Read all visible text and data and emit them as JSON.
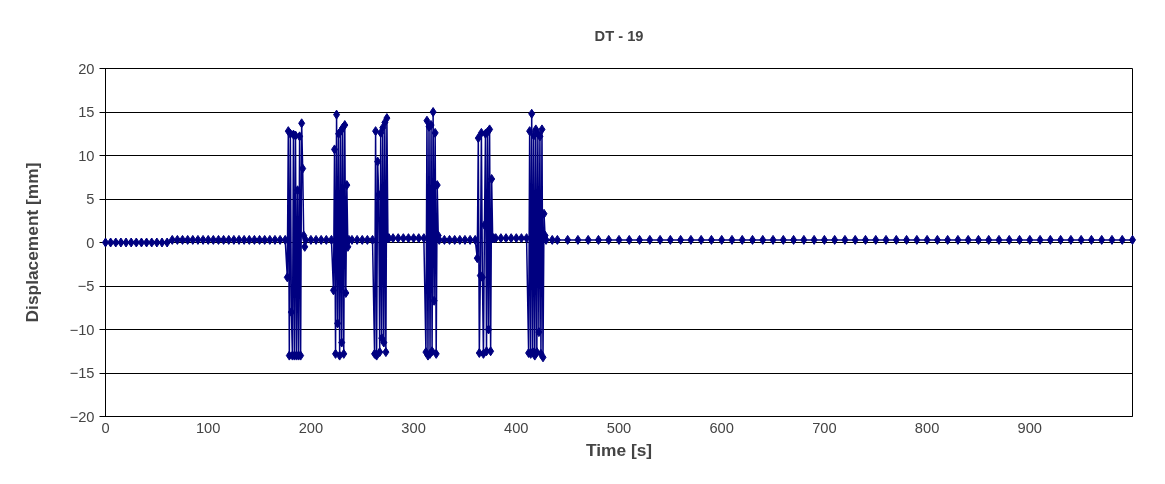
{
  "chart_data": {
    "type": "line",
    "title": "DT - 19",
    "xlabel": "Time [s]",
    "ylabel": "Displacement [mm]",
    "xlim": [
      0,
      1000
    ],
    "xticks": [
      0,
      100,
      200,
      300,
      400,
      500,
      600,
      700,
      800,
      900
    ],
    "ylim": [
      -20,
      20
    ],
    "yticks": [
      -20,
      -15,
      -10,
      -5,
      0,
      5,
      10,
      15,
      20
    ],
    "grid": "y",
    "marker": "diamond",
    "series": [
      {
        "color": "#000080",
        "x": [
          0,
          5,
          10,
          15,
          20,
          25,
          30,
          35,
          40,
          45,
          50,
          55,
          60,
          65,
          70,
          75,
          80,
          85,
          90,
          95,
          100,
          105,
          110,
          115,
          120,
          125,
          130,
          135,
          140,
          145,
          150,
          155,
          160,
          165,
          170,
          175,
          177,
          178,
          179,
          180,
          181,
          182,
          183,
          184,
          185,
          186,
          187,
          188,
          189,
          190,
          191,
          192,
          193,
          194,
          195,
          200,
          205,
          210,
          215,
          220,
          222,
          223,
          224,
          225,
          226,
          227,
          228,
          229,
          230,
          231,
          232,
          233,
          234,
          235,
          236,
          237,
          240,
          245,
          250,
          255,
          260,
          262,
          263,
          264,
          265,
          266,
          267,
          268,
          269,
          270,
          271,
          272,
          273,
          274,
          275,
          276,
          280,
          285,
          290,
          295,
          300,
          305,
          310,
          312,
          313,
          314,
          315,
          316,
          317,
          318,
          319,
          320,
          321,
          322,
          323,
          324,
          325,
          330,
          335,
          340,
          345,
          350,
          355,
          360,
          362,
          363,
          364,
          365,
          366,
          367,
          368,
          369,
          370,
          371,
          372,
          373,
          374,
          375,
          376,
          377,
          378,
          380,
          385,
          390,
          395,
          400,
          405,
          410,
          412,
          413,
          414,
          415,
          416,
          417,
          418,
          419,
          420,
          421,
          422,
          423,
          424,
          425,
          426,
          427,
          428,
          429,
          435,
          440,
          450,
          460,
          470,
          480,
          490,
          500,
          510,
          520,
          530,
          540,
          550,
          560,
          570,
          580,
          590,
          600,
          610,
          620,
          630,
          640,
          650,
          660,
          670,
          680,
          690,
          700,
          710,
          720,
          730,
          740,
          750,
          760,
          770,
          780,
          790,
          800,
          810,
          820,
          830,
          840,
          850,
          860,
          870,
          880,
          890,
          900,
          910,
          920,
          930,
          940,
          950,
          960,
          970,
          980,
          990,
          1000
        ],
        "values": [
          0,
          0,
          0,
          0,
          0,
          0,
          0,
          0,
          0,
          0,
          0,
          0,
          0,
          0.3,
          0.3,
          0.3,
          0.3,
          0.3,
          0.3,
          0.3,
          0.3,
          0.3,
          0.3,
          0.3,
          0.3,
          0.3,
          0.3,
          0.3,
          0.3,
          0.3,
          0.3,
          0.3,
          0.3,
          0.3,
          0.3,
          0.3,
          -4,
          12.8,
          -13,
          12.5,
          -8,
          -13,
          12.4,
          -13,
          12.3,
          -13,
          6,
          -13,
          12.2,
          -13,
          13.7,
          8.5,
          0.8,
          -0.5,
          0.3,
          0.3,
          0.3,
          0.3,
          0.3,
          0.3,
          -5.5,
          10.7,
          -12.8,
          14.7,
          -9.3,
          12.5,
          -13,
          12.8,
          -11.5,
          13.2,
          -12.8,
          13.5,
          -5.8,
          6.6,
          -0.5,
          0.3,
          0.3,
          0.3,
          0.3,
          0.3,
          0.3,
          -12.8,
          12.8,
          -13,
          9.3,
          5.5,
          -12.6,
          12.6,
          -11,
          13.2,
          -11.5,
          13.8,
          -12.6,
          14.3,
          0.5,
          0.5,
          0.5,
          0.5,
          0.5,
          0.5,
          0.5,
          0.5,
          0.5,
          -12.6,
          14,
          -13,
          13.3,
          -12.8,
          13.5,
          -12.5,
          15,
          -6.7,
          12.6,
          -12.8,
          6.6,
          0.8,
          0.3,
          0.3,
          0.3,
          0.3,
          0.3,
          0.3,
          0.3,
          0.3,
          -1.8,
          12,
          -12.7,
          -3.8,
          12.6,
          -4,
          -12.8,
          2,
          12.5,
          -12.5,
          12.7,
          -10,
          13,
          -12.5,
          7.3,
          0.5,
          0.5,
          0.5,
          0.5,
          0.5,
          0.5,
          0.5,
          0.5,
          0.5,
          -12.7,
          12.8,
          -12.8,
          14.8,
          -12.6,
          12.3,
          -13,
          13,
          -12.6,
          12.5,
          -10.3,
          12.2,
          -12.8,
          13,
          -13.2,
          3.3,
          0.8,
          0.3,
          0.3,
          0.3,
          0.3,
          0.3,
          0.3,
          0.3,
          0.3,
          0.3,
          0.3,
          0.3,
          0.3,
          0.3,
          0.3,
          0.3,
          0.3,
          0.3,
          0.3,
          0.3,
          0.3,
          0.3,
          0.3,
          0.3,
          0.3,
          0.3,
          0.3,
          0.3,
          0.3,
          0.3,
          0.3,
          0.3,
          0.3,
          0.3,
          0.3,
          0.3,
          0.3,
          0.3,
          0.3,
          0.3,
          0.3,
          0.3,
          0.3,
          0.3,
          0.3,
          0.3,
          0.3,
          0.3,
          0.3,
          0.3,
          0.3,
          0.3,
          0.3,
          0.3,
          0.3,
          0.3,
          0.3,
          0.3,
          0.3,
          0.3
        ]
      }
    ]
  }
}
